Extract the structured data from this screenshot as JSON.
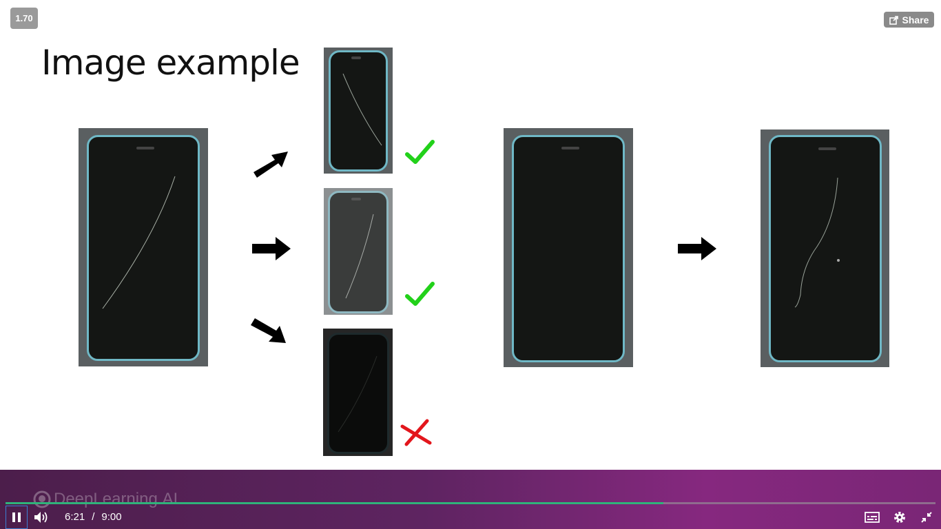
{
  "player": {
    "speed": "1.70",
    "share_label": "Share",
    "current_time": "6:21",
    "separator": "/",
    "duration": "9:00",
    "progress_fraction": 0.705,
    "brand": "DeepLearning.AI",
    "accent_progress": "#2fb37a",
    "band_color": "#5e2461"
  },
  "slide": {
    "title": "Image example"
  },
  "marks": {
    "check_color": "#22d11a",
    "cross_color": "#e3161c"
  },
  "icons": {
    "share": "share-icon",
    "pause": "pause-icon",
    "volume": "volume-icon",
    "captions": "captions-icon",
    "settings": "gear-icon",
    "exit_fullscreen": "exit-fullscreen-icon"
  }
}
